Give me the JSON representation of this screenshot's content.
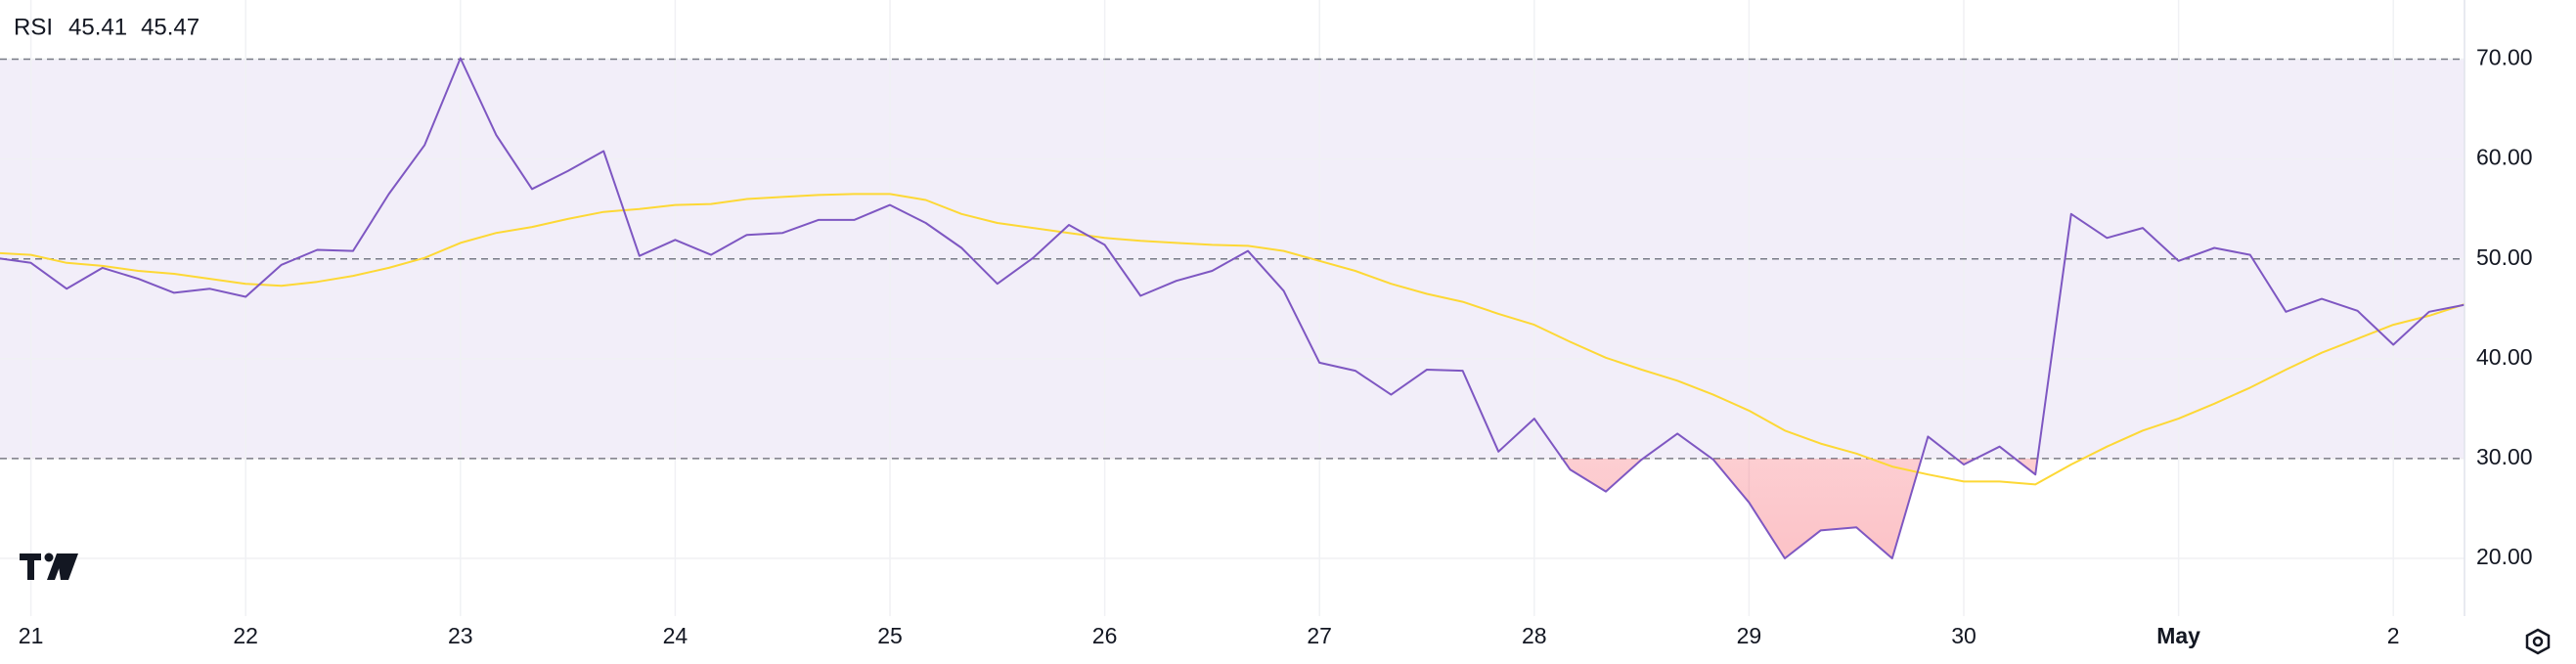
{
  "chart_data": {
    "type": "line",
    "title": "RSI",
    "categories": [
      null,
      "21",
      null,
      null,
      null,
      null,
      null,
      "22",
      null,
      null,
      null,
      null,
      null,
      "23",
      null,
      null,
      null,
      null,
      null,
      "24",
      null,
      null,
      null,
      null,
      null,
      "25",
      null,
      null,
      null,
      null,
      null,
      "26",
      null,
      null,
      null,
      null,
      null,
      "27",
      null,
      null,
      null,
      null,
      null,
      "28",
      null,
      null,
      null,
      null,
      null,
      "29",
      null,
      null,
      null,
      null,
      null,
      "30",
      null,
      null,
      null,
      null,
      null,
      "May",
      null,
      null,
      null,
      null,
      null,
      "2",
      null,
      null
    ],
    "bold_categories": [
      "May"
    ],
    "series": [
      {
        "color": "#7e57c2",
        "current_value": 45.41,
        "values": [
          50.1,
          49.6,
          47.0,
          49.1,
          48.0,
          46.6,
          47.0,
          46.2,
          49.4,
          50.9,
          50.8,
          56.5,
          61.4,
          70.1,
          62.4,
          57.0,
          58.8,
          60.8,
          50.3,
          51.9,
          50.4,
          52.4,
          52.6,
          53.9,
          53.9,
          55.4,
          53.6,
          51.1,
          47.5,
          50.1,
          53.4,
          51.4,
          46.3,
          47.8,
          48.8,
          50.8,
          46.8,
          39.6,
          38.8,
          36.4,
          38.9,
          38.8,
          30.7,
          34.0,
          28.9,
          26.7,
          29.9,
          32.5,
          29.9,
          25.6,
          20.0,
          22.8,
          23.1,
          20.0,
          32.2,
          29.4,
          31.2,
          28.4,
          54.5,
          52.1,
          53.1,
          49.8,
          51.1,
          50.4,
          44.7,
          46.0,
          44.8,
          41.4,
          44.7,
          45.41
        ]
      },
      {
        "color": "#fdd835",
        "current_value": 45.47,
        "values": [
          50.6,
          50.4,
          49.6,
          49.3,
          48.8,
          48.5,
          48.0,
          47.5,
          47.3,
          47.7,
          48.3,
          49.1,
          50.1,
          51.6,
          52.6,
          53.2,
          54.0,
          54.7,
          55.0,
          55.4,
          55.5,
          56.0,
          56.2,
          56.4,
          56.5,
          56.5,
          55.9,
          54.5,
          53.6,
          53.1,
          52.6,
          52.1,
          51.8,
          51.6,
          51.4,
          51.3,
          50.8,
          49.8,
          48.8,
          47.5,
          46.5,
          45.7,
          44.5,
          43.4,
          41.7,
          40.1,
          38.9,
          37.8,
          36.4,
          34.8,
          32.8,
          31.5,
          30.5,
          29.2,
          28.4,
          27.7,
          27.7,
          27.4,
          29.4,
          31.2,
          32.8,
          34.0,
          35.5,
          37.1,
          38.9,
          40.6,
          42.0,
          43.4,
          44.3,
          45.47
        ]
      }
    ],
    "ylim": [
      14.22,
      75.93
    ],
    "yticks": [
      {
        "value": 20,
        "label": "20.00"
      },
      {
        "value": 30,
        "label": "30.00"
      },
      {
        "value": 40,
        "label": "40.00"
      },
      {
        "value": 50,
        "label": "50.00"
      },
      {
        "value": 60,
        "label": "60.00"
      },
      {
        "value": 70,
        "label": "70.00"
      }
    ],
    "levels": [
      30,
      50,
      70
    ],
    "band": [
      30,
      70
    ],
    "band_color": "rgba(126,87,194,0.1)",
    "oversold_color": "#f7525f",
    "grid": true
  }
}
